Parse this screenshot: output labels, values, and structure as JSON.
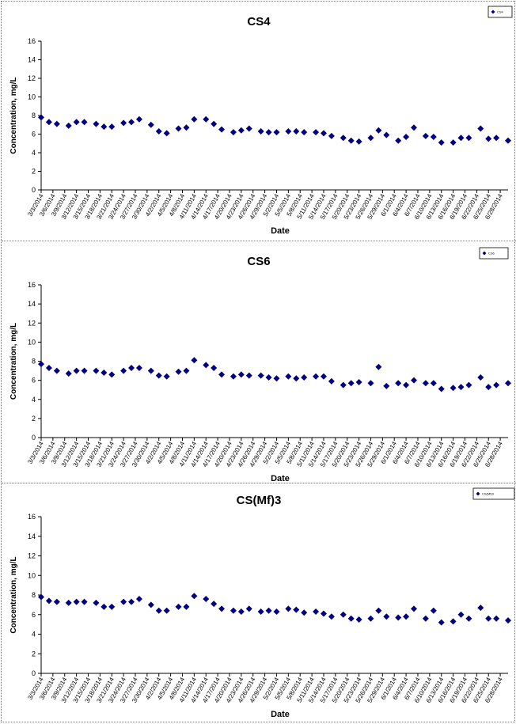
{
  "chart_data": [
    {
      "type": "scatter",
      "title": "CS4",
      "xlabel": "Date",
      "ylabel": "Concentration, mg/L",
      "ylim": [
        0,
        16
      ],
      "yticks": [
        0,
        2,
        4,
        6,
        8,
        10,
        12,
        14,
        16
      ],
      "legend": "top-right",
      "legend_text": "CS4",
      "grid": false,
      "marker_color": "#000080",
      "xticks": [
        "3/3/2014",
        "3/6/2014",
        "3/9/2014",
        "3/12/2014",
        "3/15/2014",
        "3/18/2014",
        "3/21/2014",
        "3/24/2014",
        "3/27/2014",
        "3/30/2014",
        "4/2/2014",
        "4/5/2014",
        "4/8/2014",
        "4/11/2014",
        "4/14/2014",
        "4/17/2014",
        "4/20/2014",
        "4/23/2014",
        "4/26/2014",
        "4/29/2014",
        "5/2/2014",
        "5/5/2014",
        "5/8/2014",
        "5/11/2014",
        "5/14/2014",
        "5/17/2014",
        "5/20/2014",
        "5/23/2014",
        "5/26/2014",
        "5/29/2014",
        "6/1/2014",
        "6/4/2014",
        "6/7/2014",
        "6/10/2014",
        "6/13/2014",
        "6/16/2014",
        "6/19/2014",
        "6/22/2014",
        "6/25/2014",
        "6/28/2014"
      ],
      "points": [
        {
          "x": "3/3/2014",
          "y": 7.8
        },
        {
          "x": "3/5/2014",
          "y": 7.3
        },
        {
          "x": "3/7/2014",
          "y": 7.1
        },
        {
          "x": "3/10/2014",
          "y": 6.9
        },
        {
          "x": "3/12/2014",
          "y": 7.3
        },
        {
          "x": "3/14/2014",
          "y": 7.3
        },
        {
          "x": "3/17/2014",
          "y": 7.1
        },
        {
          "x": "3/19/2014",
          "y": 6.8
        },
        {
          "x": "3/21/2014",
          "y": 6.8
        },
        {
          "x": "3/24/2014",
          "y": 7.2
        },
        {
          "x": "3/26/2014",
          "y": 7.3
        },
        {
          "x": "3/28/2014",
          "y": 7.6
        },
        {
          "x": "3/31/2014",
          "y": 7.0
        },
        {
          "x": "4/2/2014",
          "y": 6.3
        },
        {
          "x": "4/4/2014",
          "y": 6.1
        },
        {
          "x": "4/7/2014",
          "y": 6.6
        },
        {
          "x": "4/9/2014",
          "y": 6.7
        },
        {
          "x": "4/11/2014",
          "y": 7.6
        },
        {
          "x": "4/14/2014",
          "y": 7.6
        },
        {
          "x": "4/16/2014",
          "y": 7.1
        },
        {
          "x": "4/18/2014",
          "y": 6.5
        },
        {
          "x": "4/21/2014",
          "y": 6.2
        },
        {
          "x": "4/23/2014",
          "y": 6.4
        },
        {
          "x": "4/25/2014",
          "y": 6.6
        },
        {
          "x": "4/28/2014",
          "y": 6.3
        },
        {
          "x": "4/30/2014",
          "y": 6.2
        },
        {
          "x": "5/2/2014",
          "y": 6.2
        },
        {
          "x": "5/5/2014",
          "y": 6.3
        },
        {
          "x": "5/7/2014",
          "y": 6.3
        },
        {
          "x": "5/9/2014",
          "y": 6.2
        },
        {
          "x": "5/12/2014",
          "y": 6.2
        },
        {
          "x": "5/14/2014",
          "y": 6.1
        },
        {
          "x": "5/16/2014",
          "y": 5.8
        },
        {
          "x": "5/19/2014",
          "y": 5.6
        },
        {
          "x": "5/21/2014",
          "y": 5.3
        },
        {
          "x": "5/23/2014",
          "y": 5.2
        },
        {
          "x": "5/26/2014",
          "y": 5.6
        },
        {
          "x": "5/28/2014",
          "y": 6.4
        },
        {
          "x": "5/30/2014",
          "y": 5.9
        },
        {
          "x": "6/2/2014",
          "y": 5.3
        },
        {
          "x": "6/4/2014",
          "y": 5.7
        },
        {
          "x": "6/6/2014",
          "y": 6.7
        },
        {
          "x": "6/9/2014",
          "y": 5.8
        },
        {
          "x": "6/11/2014",
          "y": 5.7
        },
        {
          "x": "6/13/2014",
          "y": 5.1
        },
        {
          "x": "6/16/2014",
          "y": 5.1
        },
        {
          "x": "6/18/2014",
          "y": 5.6
        },
        {
          "x": "6/20/2014",
          "y": 5.6
        },
        {
          "x": "6/23/2014",
          "y": 6.6
        },
        {
          "x": "6/25/2014",
          "y": 5.5
        },
        {
          "x": "6/27/2014",
          "y": 5.6
        },
        {
          "x": "6/30/2014",
          "y": 5.3
        }
      ]
    },
    {
      "type": "scatter",
      "title": "CS6",
      "xlabel": "Date",
      "ylabel": "Concentration, mg/L",
      "ylim": [
        0,
        16
      ],
      "yticks": [
        0,
        2,
        4,
        6,
        8,
        10,
        12,
        14,
        16
      ],
      "legend": "top-right",
      "legend_text": "CS6",
      "grid": false,
      "marker_color": "#000080",
      "xticks": [
        "3/3/2014",
        "3/6/2014",
        "3/9/2014",
        "3/12/2014",
        "3/15/2014",
        "3/18/2014",
        "3/21/2014",
        "3/24/2014",
        "3/27/2014",
        "3/30/2014",
        "4/2/2014",
        "4/5/2014",
        "4/8/2014",
        "4/11/2014",
        "4/14/2014",
        "4/17/2014",
        "4/20/2014",
        "4/23/2014",
        "4/26/2014",
        "4/29/2014",
        "5/2/2014",
        "5/5/2014",
        "5/8/2014",
        "5/11/2014",
        "5/14/2014",
        "5/17/2014",
        "5/20/2014",
        "5/23/2014",
        "5/26/2014",
        "5/29/2014",
        "6/1/2014",
        "6/4/2014",
        "6/7/2014",
        "6/10/2014",
        "6/13/2014",
        "6/16/2014",
        "6/19/2014",
        "6/22/2014",
        "6/25/2014",
        "6/28/2014"
      ],
      "points": [
        {
          "x": "3/3/2014",
          "y": 7.7
        },
        {
          "x": "3/5/2014",
          "y": 7.3
        },
        {
          "x": "3/7/2014",
          "y": 7.0
        },
        {
          "x": "3/10/2014",
          "y": 6.7
        },
        {
          "x": "3/12/2014",
          "y": 7.0
        },
        {
          "x": "3/14/2014",
          "y": 7.0
        },
        {
          "x": "3/17/2014",
          "y": 7.0
        },
        {
          "x": "3/19/2014",
          "y": 6.8
        },
        {
          "x": "3/21/2014",
          "y": 6.6
        },
        {
          "x": "3/24/2014",
          "y": 7.0
        },
        {
          "x": "3/26/2014",
          "y": 7.3
        },
        {
          "x": "3/28/2014",
          "y": 7.3
        },
        {
          "x": "3/31/2014",
          "y": 7.0
        },
        {
          "x": "4/2/2014",
          "y": 6.5
        },
        {
          "x": "4/4/2014",
          "y": 6.4
        },
        {
          "x": "4/7/2014",
          "y": 6.9
        },
        {
          "x": "4/9/2014",
          "y": 7.0
        },
        {
          "x": "4/11/2014",
          "y": 8.1
        },
        {
          "x": "4/14/2014",
          "y": 7.6
        },
        {
          "x": "4/16/2014",
          "y": 7.3
        },
        {
          "x": "4/18/2014",
          "y": 6.6
        },
        {
          "x": "4/21/2014",
          "y": 6.4
        },
        {
          "x": "4/23/2014",
          "y": 6.6
        },
        {
          "x": "4/25/2014",
          "y": 6.5
        },
        {
          "x": "4/28/2014",
          "y": 6.5
        },
        {
          "x": "4/30/2014",
          "y": 6.3
        },
        {
          "x": "5/2/2014",
          "y": 6.2
        },
        {
          "x": "5/5/2014",
          "y": 6.4
        },
        {
          "x": "5/7/2014",
          "y": 6.2
        },
        {
          "x": "5/9/2014",
          "y": 6.3
        },
        {
          "x": "5/12/2014",
          "y": 6.4
        },
        {
          "x": "5/14/2014",
          "y": 6.4
        },
        {
          "x": "5/16/2014",
          "y": 5.9
        },
        {
          "x": "5/19/2014",
          "y": 5.5
        },
        {
          "x": "5/21/2014",
          "y": 5.7
        },
        {
          "x": "5/23/2014",
          "y": 5.8
        },
        {
          "x": "5/26/2014",
          "y": 5.7
        },
        {
          "x": "5/28/2014",
          "y": 7.4
        },
        {
          "x": "5/30/2014",
          "y": 5.4
        },
        {
          "x": "6/2/2014",
          "y": 5.7
        },
        {
          "x": "6/4/2014",
          "y": 5.5
        },
        {
          "x": "6/6/2014",
          "y": 6.0
        },
        {
          "x": "6/9/2014",
          "y": 5.7
        },
        {
          "x": "6/11/2014",
          "y": 5.7
        },
        {
          "x": "6/13/2014",
          "y": 5.1
        },
        {
          "x": "6/16/2014",
          "y": 5.2
        },
        {
          "x": "6/18/2014",
          "y": 5.3
        },
        {
          "x": "6/20/2014",
          "y": 5.5
        },
        {
          "x": "6/23/2014",
          "y": 6.3
        },
        {
          "x": "6/25/2014",
          "y": 5.3
        },
        {
          "x": "6/27/2014",
          "y": 5.5
        },
        {
          "x": "6/30/2014",
          "y": 5.7
        }
      ]
    },
    {
      "type": "scatter",
      "title": "CS(Mf)3",
      "xlabel": "Date",
      "ylabel": "Concentration, mg/L",
      "ylim": [
        0,
        16
      ],
      "yticks": [
        0,
        2,
        4,
        6,
        8,
        10,
        12,
        14,
        16
      ],
      "legend": "top-right",
      "legend_text": "CS(Mf)3",
      "grid": false,
      "marker_color": "#000080",
      "xticks": [
        "3/3/2014",
        "3/6/2014",
        "3/9/2014",
        "3/12/2014",
        "3/15/2014",
        "3/18/2014",
        "3/21/2014",
        "3/24/2014",
        "3/27/2014",
        "3/30/2014",
        "4/2/2014",
        "4/5/2014",
        "4/8/2014",
        "4/11/2014",
        "4/14/2014",
        "4/17/2014",
        "4/20/2014",
        "4/23/2014",
        "4/26/2014",
        "4/29/2014",
        "5/2/2014",
        "5/5/2014",
        "5/8/2014",
        "5/11/2014",
        "5/14/2014",
        "5/17/2014",
        "5/20/2014",
        "5/23/2014",
        "5/26/2014",
        "5/29/2014",
        "6/1/2014",
        "6/4/2014",
        "6/7/2014",
        "6/10/2014",
        "6/13/2014",
        "6/16/2014",
        "6/19/2014",
        "6/22/2014",
        "6/25/2014",
        "6/28/2014"
      ],
      "points": [
        {
          "x": "3/3/2014",
          "y": 7.8
        },
        {
          "x": "3/5/2014",
          "y": 7.4
        },
        {
          "x": "3/7/2014",
          "y": 7.3
        },
        {
          "x": "3/10/2014",
          "y": 7.2
        },
        {
          "x": "3/12/2014",
          "y": 7.3
        },
        {
          "x": "3/14/2014",
          "y": 7.3
        },
        {
          "x": "3/17/2014",
          "y": 7.2
        },
        {
          "x": "3/19/2014",
          "y": 6.8
        },
        {
          "x": "3/21/2014",
          "y": 6.8
        },
        {
          "x": "3/24/2014",
          "y": 7.3
        },
        {
          "x": "3/26/2014",
          "y": 7.3
        },
        {
          "x": "3/28/2014",
          "y": 7.6
        },
        {
          "x": "3/31/2014",
          "y": 7.0
        },
        {
          "x": "4/2/2014",
          "y": 6.4
        },
        {
          "x": "4/4/2014",
          "y": 6.4
        },
        {
          "x": "4/7/2014",
          "y": 6.8
        },
        {
          "x": "4/9/2014",
          "y": 6.8
        },
        {
          "x": "4/11/2014",
          "y": 7.9
        },
        {
          "x": "4/14/2014",
          "y": 7.6
        },
        {
          "x": "4/16/2014",
          "y": 7.1
        },
        {
          "x": "4/18/2014",
          "y": 6.6
        },
        {
          "x": "4/21/2014",
          "y": 6.4
        },
        {
          "x": "4/23/2014",
          "y": 6.3
        },
        {
          "x": "4/25/2014",
          "y": 6.6
        },
        {
          "x": "4/28/2014",
          "y": 6.3
        },
        {
          "x": "4/30/2014",
          "y": 6.4
        },
        {
          "x": "5/2/2014",
          "y": 6.3
        },
        {
          "x": "5/5/2014",
          "y": 6.6
        },
        {
          "x": "5/7/2014",
          "y": 6.5
        },
        {
          "x": "5/9/2014",
          "y": 6.2
        },
        {
          "x": "5/12/2014",
          "y": 6.3
        },
        {
          "x": "5/14/2014",
          "y": 6.1
        },
        {
          "x": "5/16/2014",
          "y": 5.8
        },
        {
          "x": "5/19/2014",
          "y": 6.0
        },
        {
          "x": "5/21/2014",
          "y": 5.6
        },
        {
          "x": "5/23/2014",
          "y": 5.5
        },
        {
          "x": "5/26/2014",
          "y": 5.6
        },
        {
          "x": "5/28/2014",
          "y": 6.4
        },
        {
          "x": "5/30/2014",
          "y": 5.8
        },
        {
          "x": "6/2/2014",
          "y": 5.7
        },
        {
          "x": "6/4/2014",
          "y": 5.8
        },
        {
          "x": "6/6/2014",
          "y": 6.6
        },
        {
          "x": "6/9/2014",
          "y": 5.6
        },
        {
          "x": "6/11/2014",
          "y": 6.4
        },
        {
          "x": "6/13/2014",
          "y": 5.2
        },
        {
          "x": "6/16/2014",
          "y": 5.3
        },
        {
          "x": "6/18/2014",
          "y": 6.0
        },
        {
          "x": "6/20/2014",
          "y": 5.6
        },
        {
          "x": "6/23/2014",
          "y": 6.7
        },
        {
          "x": "6/25/2014",
          "y": 5.6
        },
        {
          "x": "6/27/2014",
          "y": 5.6
        },
        {
          "x": "6/30/2014",
          "y": 5.4
        }
      ]
    }
  ]
}
